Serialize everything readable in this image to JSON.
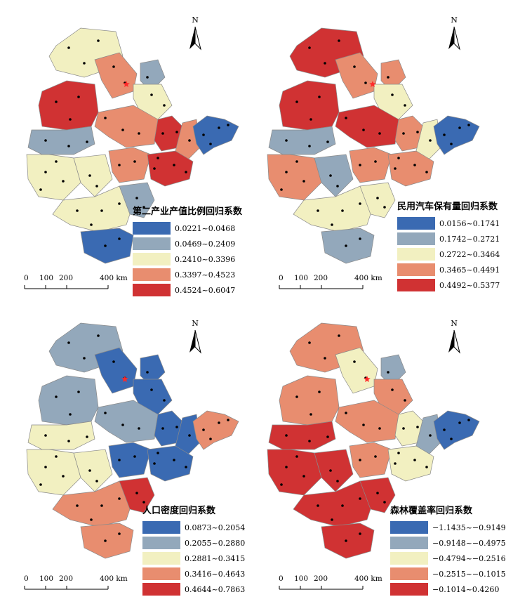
{
  "north_label": "N",
  "scale_labels": [
    "0",
    "100",
    "200",
    "400 km"
  ],
  "colors": {
    "c1": "#3a6ab2",
    "c2": "#93a8bb",
    "c3": "#f2f0c1",
    "c4": "#e88d6f",
    "c5": "#d03233",
    "boundary": "#8a8a8a",
    "dot": "#000000",
    "capital_star": "#ff2a2a"
  },
  "panels": [
    {
      "legend_title": "第二产业产值比例回归系数",
      "legend": [
        {
          "label": "0.0221~0.0468",
          "color": "#3a6ab2"
        },
        {
          "label": "0.0469~0.2409",
          "color": "#93a8bb"
        },
        {
          "label": "0.2410~0.3396",
          "color": "#f2f0c1"
        },
        {
          "label": "0.3397~0.4523",
          "color": "#e88d6f"
        },
        {
          "label": "0.4524~0.6047",
          "color": "#d03233"
        }
      ],
      "zones": [
        "c3",
        "c4",
        "c2",
        "c3",
        "c5",
        "c4",
        "c5",
        "c4",
        "c1",
        "c2",
        "c3",
        "c3",
        "c4",
        "c5",
        "c3",
        "c2",
        "c1"
      ]
    },
    {
      "legend_title": "民用汽车保有量回归系数",
      "legend": [
        {
          "label": "0.0156~0.1741",
          "color": "#3a6ab2"
        },
        {
          "label": "0.1742~0.2721",
          "color": "#93a8bb"
        },
        {
          "label": "0.2722~0.3464",
          "color": "#f2f0c1"
        },
        {
          "label": "0.3465~0.4491",
          "color": "#e88d6f"
        },
        {
          "label": "0.4492~0.5377",
          "color": "#d03233"
        }
      ],
      "zones": [
        "c5",
        "c4",
        "c4",
        "c3",
        "c5",
        "c5",
        "c4",
        "c3",
        "c1",
        "c2",
        "c4",
        "c2",
        "c4",
        "c4",
        "c3",
        "c3",
        "c2"
      ]
    },
    {
      "legend_title": "人口密度回归系数",
      "legend": [
        {
          "label": "0.0873~0.2054",
          "color": "#3a6ab2"
        },
        {
          "label": "0.2055~0.2880",
          "color": "#93a8bb"
        },
        {
          "label": "0.2881~0.3415",
          "color": "#f2f0c1"
        },
        {
          "label": "0.3416~0.4643",
          "color": "#e88d6f"
        },
        {
          "label": "0.4644~0.7863",
          "color": "#d03233"
        }
      ],
      "zones": [
        "c2",
        "c1",
        "c1",
        "c1",
        "c2",
        "c2",
        "c1",
        "c1",
        "c4",
        "c3",
        "c3",
        "c3",
        "c1",
        "c1",
        "c4",
        "c5",
        "c4"
      ]
    },
    {
      "legend_title": "森林覆盖率回归系数",
      "legend": [
        {
          "label": "−1.1435~−0.9149",
          "color": "#3a6ab2"
        },
        {
          "label": "−0.9148~−0.4975",
          "color": "#93a8bb"
        },
        {
          "label": "−0.4794~−0.2516",
          "color": "#f2f0c1"
        },
        {
          "label": "−0.2515~−0.1015",
          "color": "#e88d6f"
        },
        {
          "label": "−0.1014~0.4260",
          "color": "#d03233"
        }
      ],
      "zones": [
        "c4",
        "c3",
        "c2",
        "c4",
        "c4",
        "c4",
        "c3",
        "c2",
        "c1",
        "c5",
        "c5",
        "c5",
        "c4",
        "c3",
        "c5",
        "c5",
        "c5"
      ]
    }
  ]
}
